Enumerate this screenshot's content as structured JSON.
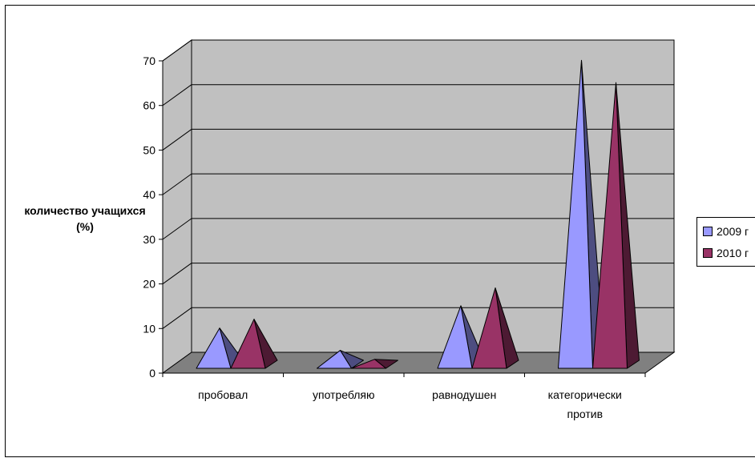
{
  "chart_data": {
    "type": "bar",
    "title": "",
    "ylabel": "количество учащихся (%)",
    "xlabel": "",
    "ylim": [
      0,
      70
    ],
    "yticks": [
      "0",
      "10",
      "20",
      "30",
      "40",
      "50",
      "60",
      "70"
    ],
    "grid": true,
    "legend_position": "right",
    "categories": [
      "пробовал",
      "употребляю",
      "равнодушен",
      "категорически против"
    ],
    "category_lines": [
      [
        "пробовал"
      ],
      [
        "употребляю"
      ],
      [
        "равнодушен"
      ],
      [
        "категорически",
        "против"
      ]
    ],
    "series": [
      {
        "name": "2009 г",
        "values": [
          11,
          6,
          16,
          71
        ],
        "color": "#9999ff"
      },
      {
        "name": "2010 г",
        "values": [
          13,
          4,
          20,
          66
        ],
        "color": "#993366"
      }
    ]
  }
}
